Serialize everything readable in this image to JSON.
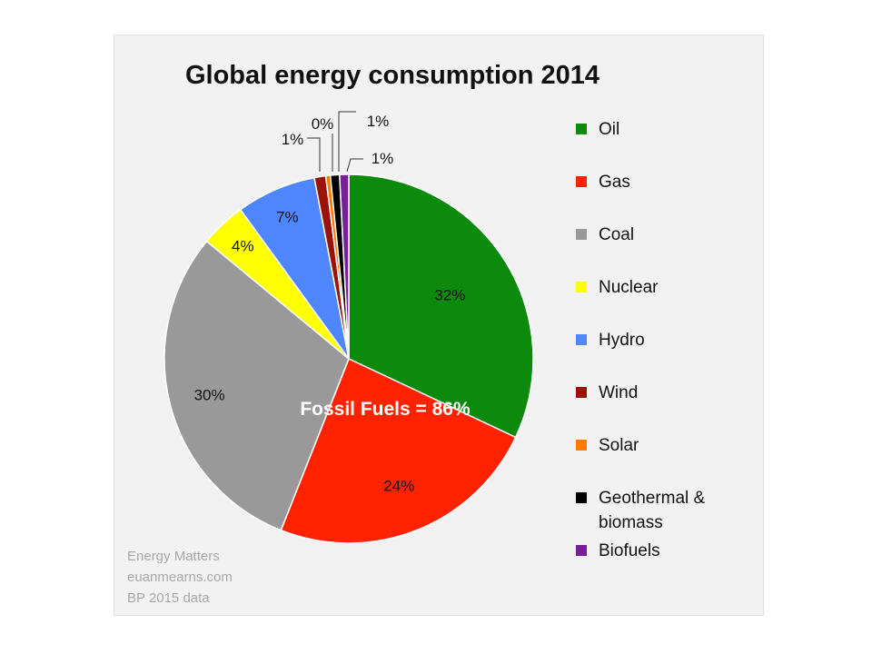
{
  "chart_data": {
    "type": "pie",
    "title": "Global energy consumption 2014",
    "slices": [
      {
        "name": "Oil",
        "value": 32,
        "label": "32%",
        "color": "#0b8a0b"
      },
      {
        "name": "Gas",
        "value": 24,
        "label": "24%",
        "color": "#ff2200"
      },
      {
        "name": "Coal",
        "value": 30,
        "label": "30%",
        "color": "#999999"
      },
      {
        "name": "Nuclear",
        "value": 4,
        "label": "4%",
        "color": "#ffff00"
      },
      {
        "name": "Hydro",
        "value": 7,
        "label": "7%",
        "color": "#4d86ff"
      },
      {
        "name": "Wind",
        "value": 1,
        "label": "1%",
        "color": "#9b1208"
      },
      {
        "name": "Solar",
        "value": 0.4,
        "label": "0%",
        "color": "#ff7a00"
      },
      {
        "name": "Geothermal & biomass",
        "value": 0.8,
        "label": "1%",
        "color": "#000000"
      },
      {
        "name": "Biofuels",
        "value": 0.8,
        "label": "1%",
        "color": "#7a1f9c"
      }
    ],
    "annotation": "Fossil Fuels = 86%"
  },
  "legend": {
    "items": [
      {
        "label": "Oil",
        "color": "#0b8a0b"
      },
      {
        "label": "Gas",
        "color": "#ff2200"
      },
      {
        "label": "Coal",
        "color": "#999999"
      },
      {
        "label": "Nuclear",
        "color": "#ffff00"
      },
      {
        "label": "Hydro",
        "color": "#4d86ff"
      },
      {
        "label": "Wind",
        "color": "#9b1208"
      },
      {
        "label": "Solar",
        "color": "#ff7a00"
      },
      {
        "label": "Geothermal & biomass",
        "color": "#000000"
      },
      {
        "label": "Biofuels",
        "color": "#7a1f9c"
      }
    ]
  },
  "credits": {
    "line1": "Energy Matters",
    "line2": "euanmearns.com",
    "line3": "BP 2015 data"
  }
}
